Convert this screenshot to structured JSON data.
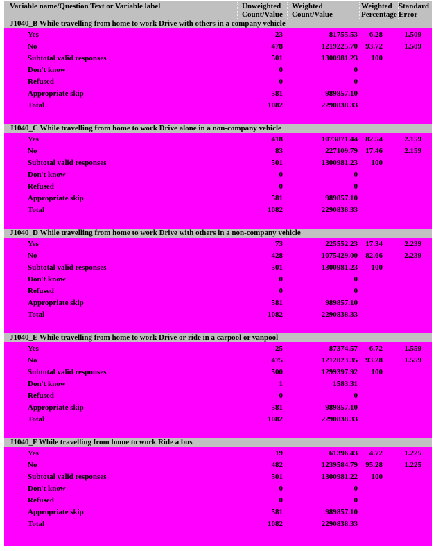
{
  "colors": {
    "page_bg": "#ff00ff",
    "bar_bg": "#c0c0c0",
    "text": "#000000"
  },
  "columns": {
    "label": "Variable name/Question Text or Variable label",
    "unweighted": [
      "Unweighted",
      "Count/Value"
    ],
    "weighted": [
      "Weighted",
      "Count/Value"
    ],
    "percentage": [
      "Weighted",
      "Percentage"
    ],
    "se": [
      "Standard",
      "Error"
    ]
  },
  "sections": [
    {
      "title": "J1040_B While travelling from home to work Drive with others in a company vehicle",
      "rows": [
        {
          "label": "Yes",
          "unw": "23",
          "wt": "81755.53",
          "pct": "6.28",
          "se": "1.509"
        },
        {
          "label": "No",
          "unw": "478",
          "wt": "1219225.70",
          "pct": "93.72",
          "se": "1.509"
        },
        {
          "label": "Subtotal valid responses",
          "unw": "501",
          "wt": "1300981.23",
          "pct": "100",
          "se": ""
        },
        {
          "label": "Don't know",
          "unw": "0",
          "wt": "0",
          "pct": "",
          "se": ""
        },
        {
          "label": "Refused",
          "unw": "0",
          "wt": "0",
          "pct": "",
          "se": ""
        },
        {
          "label": "Appropriate skip",
          "unw": "581",
          "wt": "989857.10",
          "pct": "",
          "se": ""
        },
        {
          "label": "Total",
          "unw": "1082",
          "wt": "2290838.33",
          "pct": "",
          "se": ""
        }
      ]
    },
    {
      "title": "J1040_C While travelling from home to work Drive alone in a non-company vehicle",
      "rows": [
        {
          "label": "Yes",
          "unw": "418",
          "wt": "1073871.44",
          "pct": "82.54",
          "se": "2.159"
        },
        {
          "label": "No",
          "unw": "83",
          "wt": "227109.79",
          "pct": "17.46",
          "se": "2.159"
        },
        {
          "label": "Subtotal valid responses",
          "unw": "501",
          "wt": "1300981.23",
          "pct": "100",
          "se": ""
        },
        {
          "label": "Don't know",
          "unw": "0",
          "wt": "0",
          "pct": "",
          "se": ""
        },
        {
          "label": "Refused",
          "unw": "0",
          "wt": "0",
          "pct": "",
          "se": ""
        },
        {
          "label": "Appropriate skip",
          "unw": "581",
          "wt": "989857.10",
          "pct": "",
          "se": ""
        },
        {
          "label": "Total",
          "unw": "1082",
          "wt": "2290838.33",
          "pct": "",
          "se": ""
        }
      ]
    },
    {
      "title": "J1040_D While travelling from home to work Drive with others in a non-company vehicle",
      "rows": [
        {
          "label": "Yes",
          "unw": "73",
          "wt": "225552.23",
          "pct": "17.34",
          "se": "2.239"
        },
        {
          "label": "No",
          "unw": "428",
          "wt": "1075429.00",
          "pct": "82.66",
          "se": "2.239"
        },
        {
          "label": "Subtotal valid responses",
          "unw": "501",
          "wt": "1300981.23",
          "pct": "100",
          "se": ""
        },
        {
          "label": "Don't know",
          "unw": "0",
          "wt": "0",
          "pct": "",
          "se": ""
        },
        {
          "label": "Refused",
          "unw": "0",
          "wt": "0",
          "pct": "",
          "se": ""
        },
        {
          "label": "Appropriate skip",
          "unw": "581",
          "wt": "989857.10",
          "pct": "",
          "se": ""
        },
        {
          "label": "Total",
          "unw": "1082",
          "wt": "2290838.33",
          "pct": "",
          "se": ""
        }
      ]
    },
    {
      "title": "J1040_E While travelling from home to work Drive or ride in a carpool or vanpool",
      "rows": [
        {
          "label": "Yes",
          "unw": "25",
          "wt": "87374.57",
          "pct": "6.72",
          "se": "1.559"
        },
        {
          "label": "No",
          "unw": "475",
          "wt": "1212023.35",
          "pct": "93.28",
          "se": "1.559"
        },
        {
          "label": "Subtotal valid responses",
          "unw": "500",
          "wt": "1299397.92",
          "pct": "100",
          "se": ""
        },
        {
          "label": "Don't know",
          "unw": "1",
          "wt": "1583.31",
          "pct": "",
          "se": ""
        },
        {
          "label": "Refused",
          "unw": "0",
          "wt": "0",
          "pct": "",
          "se": ""
        },
        {
          "label": "Appropriate skip",
          "unw": "581",
          "wt": "989857.10",
          "pct": "",
          "se": ""
        },
        {
          "label": "Total",
          "unw": "1082",
          "wt": "2290838.33",
          "pct": "",
          "se": ""
        }
      ]
    },
    {
      "title": "J1040_F While travelling from home to work Ride a bus",
      "rows": [
        {
          "label": "Yes",
          "unw": "19",
          "wt": "61396.43",
          "pct": "4.72",
          "se": "1.225"
        },
        {
          "label": "No",
          "unw": "482",
          "wt": "1239584.79",
          "pct": "95.28",
          "se": "1.225"
        },
        {
          "label": "Subtotal valid responses",
          "unw": "501",
          "wt": "1300981.22",
          "pct": "100",
          "se": ""
        },
        {
          "label": "Don't know",
          "unw": "0",
          "wt": "0",
          "pct": "",
          "se": ""
        },
        {
          "label": "Refused",
          "unw": "0",
          "wt": "0",
          "pct": "",
          "se": ""
        },
        {
          "label": "Appropriate skip",
          "unw": "581",
          "wt": "989857.10",
          "pct": "",
          "se": ""
        },
        {
          "label": "Total",
          "unw": "1082",
          "wt": "2290838.33",
          "pct": "",
          "se": ""
        }
      ]
    }
  ]
}
